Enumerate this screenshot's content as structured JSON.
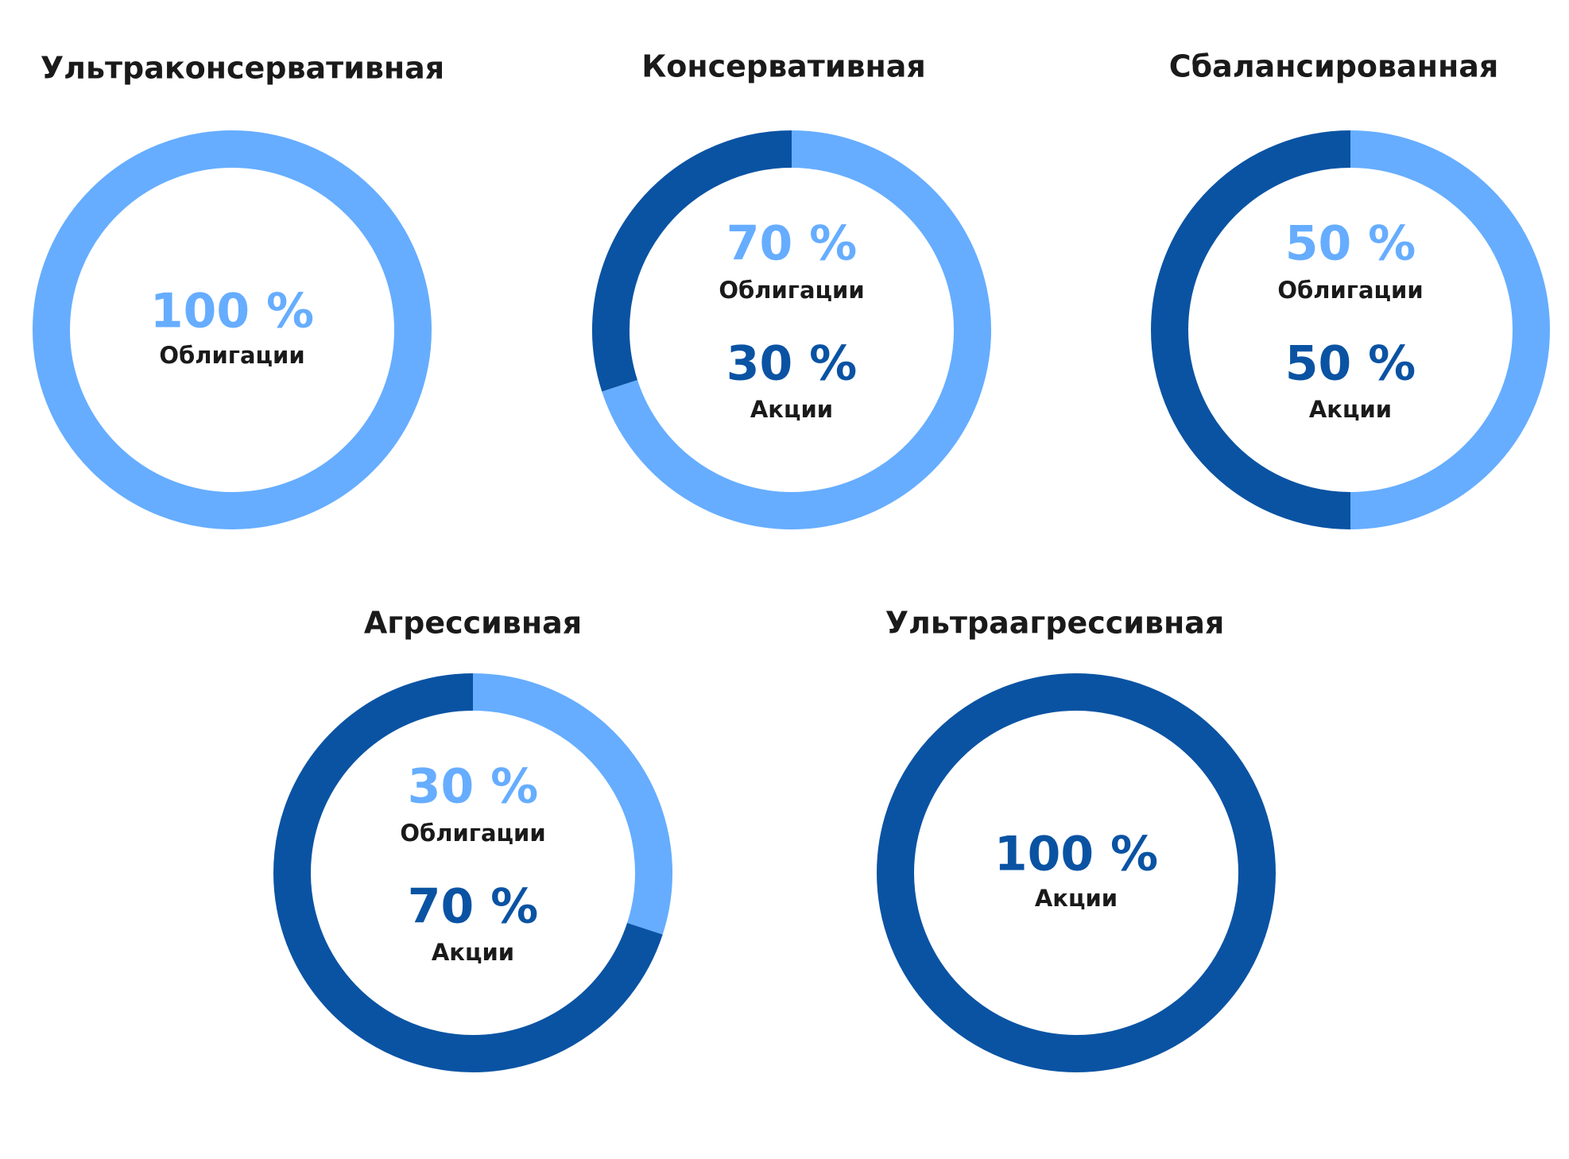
{
  "chart_data": [
    {
      "type": "donut",
      "title": "Ультраконсервативная",
      "categories": [
        "Облигации"
      ],
      "values": [
        100
      ],
      "value_labels": [
        "100 %"
      ],
      "colors": [
        "#66adff"
      ]
    },
    {
      "type": "donut",
      "title": "Консервативная",
      "categories": [
        "Облигации",
        "Акции"
      ],
      "values": [
        70,
        30
      ],
      "value_labels": [
        "70 %",
        "30 %"
      ],
      "colors": [
        "#66adff",
        "#0a53a3"
      ]
    },
    {
      "type": "donut",
      "title": "Сбалансированная",
      "categories": [
        "Облигации",
        "Акции"
      ],
      "values": [
        50,
        50
      ],
      "value_labels": [
        "50 %",
        "50 %"
      ],
      "colors": [
        "#66adff",
        "#0a53a3"
      ]
    },
    {
      "type": "donut",
      "title": "Агрессивная",
      "categories": [
        "Облигации",
        "Акции"
      ],
      "values": [
        30,
        70
      ],
      "value_labels": [
        "30 %",
        "70 %"
      ],
      "colors": [
        "#66adff",
        "#0a53a3"
      ]
    },
    {
      "type": "donut",
      "title": "Ультраагрессивная",
      "categories": [
        "Акции"
      ],
      "values": [
        100
      ],
      "value_labels": [
        "100 %"
      ],
      "colors": [
        "#0a53a3"
      ]
    }
  ]
}
